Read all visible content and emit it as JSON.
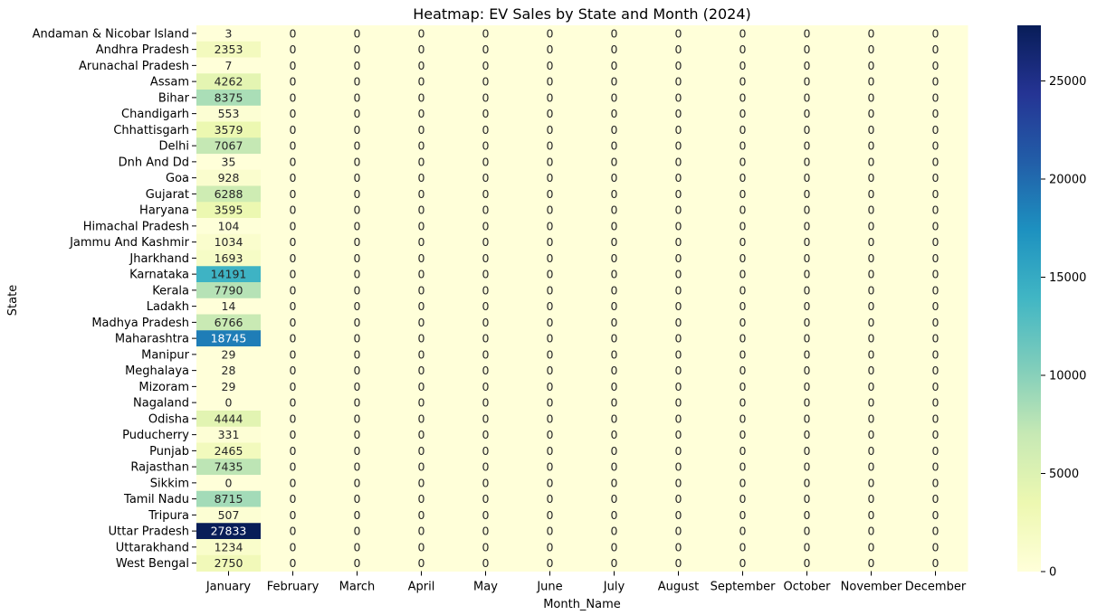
{
  "chart_data": {
    "type": "heatmap",
    "title": "Heatmap: EV Sales by State and Month (2024)",
    "xlabel": "Month_Name",
    "ylabel": "State",
    "x_categories": [
      "January",
      "February",
      "March",
      "April",
      "May",
      "June",
      "July",
      "August",
      "September",
      "October",
      "November",
      "December"
    ],
    "y_categories": [
      "Andaman & Nicobar Island",
      "Andhra Pradesh",
      "Arunachal Pradesh",
      "Assam",
      "Bihar",
      "Chandigarh",
      "Chhattisgarh",
      "Delhi",
      "Dnh And Dd",
      "Goa",
      "Gujarat",
      "Haryana",
      "Himachal Pradesh",
      "Jammu And Kashmir",
      "Jharkhand",
      "Karnataka",
      "Kerala",
      "Ladakh",
      "Madhya Pradesh",
      "Maharashtra",
      "Manipur",
      "Meghalaya",
      "Mizoram",
      "Nagaland",
      "Odisha",
      "Puducherry",
      "Punjab",
      "Rajasthan",
      "Sikkim",
      "Tamil Nadu",
      "Tripura",
      "Uttar Pradesh",
      "Uttarakhand",
      "West Bengal"
    ],
    "january_values": [
      3,
      2353,
      7,
      4262,
      8375,
      553,
      3579,
      7067,
      35,
      928,
      6288,
      3595,
      104,
      1034,
      1693,
      14191,
      7790,
      14,
      6766,
      18745,
      29,
      28,
      29,
      0,
      4444,
      331,
      2465,
      7435,
      0,
      8715,
      507,
      27833,
      1234,
      2750
    ],
    "other_months_value": 0,
    "colormap": "YlGnBu",
    "value_range": [
      0,
      27833
    ],
    "colorbar_ticks": [
      0,
      5000,
      10000,
      15000,
      20000,
      25000
    ],
    "annotations": true
  }
}
